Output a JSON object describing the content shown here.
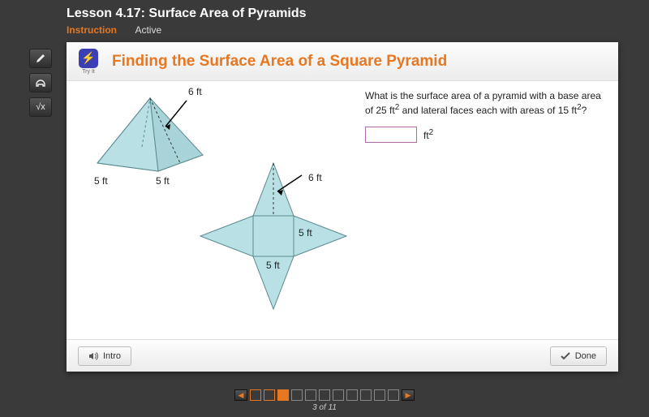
{
  "header": {
    "lesson_title": "Lesson 4.17: Surface Area of Pyramids",
    "instruction_label": "Instruction",
    "active_label": "Active"
  },
  "panel": {
    "tryit_label": "Try It",
    "tryit_glyph": "⚡",
    "title": "Finding the Surface Area of a Square Pyramid"
  },
  "question": {
    "text_before": "What is the surface area of a pyramid with a base area of 25 ft",
    "text_after": " and lateral faces each with areas of 15 ft",
    "qmark": "?",
    "unit_base": "ft",
    "answer_value": ""
  },
  "diagram": {
    "pyramid": {
      "fill": "#b9e0e4",
      "stroke": "#5a8a90",
      "labels": {
        "slant": "6 ft",
        "base_left": "5 ft",
        "base_right": "5 ft"
      }
    },
    "net": {
      "fill": "#b9e0e4",
      "stroke": "#5a8a90",
      "labels": {
        "slant": "6 ft",
        "side_right": "5 ft",
        "side_bottom": "5 ft"
      }
    }
  },
  "footer": {
    "intro_label": "Intro",
    "done_label": "Done"
  },
  "pager": {
    "total": 11,
    "current": 3,
    "label": "3 of 11"
  },
  "colors": {
    "accent": "#e87722",
    "bg": "#3a3a3a",
    "panel_bg": "#ffffff"
  }
}
